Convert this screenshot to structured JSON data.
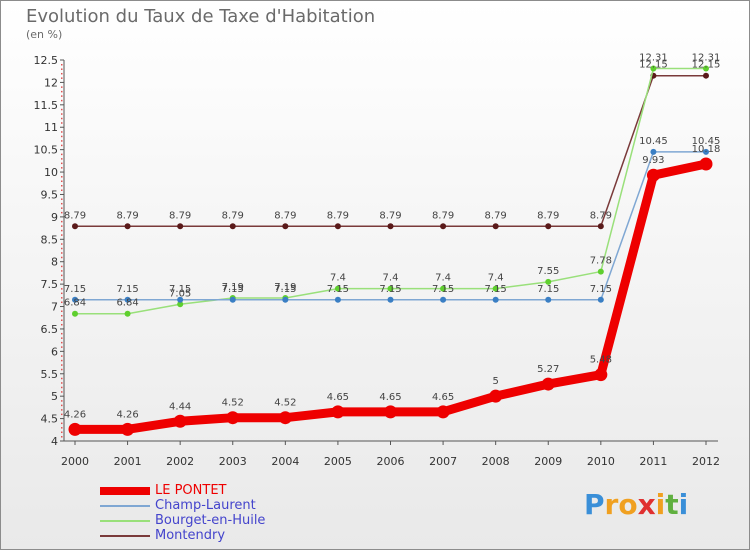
{
  "title": "Evolution du Taux de Taxe d'Habitation",
  "unit": "(en %)",
  "logo": "Proxiti",
  "chart_data": {
    "type": "line",
    "title": "Evolution du Taux de Taxe d'Habitation",
    "ylabel": "(en %)",
    "xlabel": "",
    "categories": [
      "2000",
      "2001",
      "2002",
      "2003",
      "2004",
      "2005",
      "2006",
      "2007",
      "2008",
      "2009",
      "2010",
      "2011",
      "2012"
    ],
    "ylim": [
      4,
      12.5
    ],
    "yticks": [
      4,
      4.5,
      5,
      5.5,
      6,
      6.5,
      7,
      7.5,
      8,
      8.5,
      9,
      9.5,
      10,
      10.5,
      11,
      11.5,
      12,
      12.5
    ],
    "ytick_labels": [
      "4",
      "4.5",
      "5",
      "5.5",
      "6",
      "6.5",
      "7",
      "7.5",
      "8",
      "8.5",
      "9",
      "9.5",
      "10",
      "10.5",
      "11",
      "11.5",
      "12",
      "12.5"
    ],
    "grid": false,
    "legend_position": "bottom-left",
    "series": [
      {
        "name": "LE PONTET",
        "color": "#ee0000",
        "values": [
          4.26,
          4.26,
          4.44,
          4.52,
          4.52,
          4.65,
          4.65,
          4.65,
          5,
          5.27,
          5.48,
          9.93,
          10.18
        ],
        "labels": [
          "4.26",
          "4.26",
          "4.44",
          "4.52",
          "4.52",
          "4.65",
          "4.65",
          "4.65",
          "5",
          "5.27",
          "5.48",
          "9.93",
          "10.18"
        ]
      },
      {
        "name": "Champ-Laurent",
        "color": "#7fa7d3",
        "values": [
          7.15,
          7.15,
          7.15,
          7.15,
          7.15,
          7.15,
          7.15,
          7.15,
          7.15,
          7.15,
          7.15,
          10.45,
          10.45
        ],
        "labels": [
          "7.15",
          "7.15",
          "7.15",
          "7.15",
          "7.15",
          "7.15",
          "7.15",
          "7.15",
          "7.15",
          "7.15",
          "7.15",
          "10.45",
          "10.45"
        ]
      },
      {
        "name": "Bourget-en-Huile",
        "color": "#99e07a",
        "values": [
          6.84,
          6.84,
          7.05,
          7.19,
          7.19,
          7.4,
          7.4,
          7.4,
          7.4,
          7.55,
          7.78,
          12.31,
          12.31
        ],
        "labels": [
          "6.84",
          "6.84",
          "7.05",
          "7.19",
          "7.19",
          "7.4",
          "7.4",
          "7.4",
          "7.4",
          "7.55",
          "7.78",
          "12.31",
          "12.31"
        ]
      },
      {
        "name": "Montendry",
        "color": "#7a3a3a",
        "values": [
          8.79,
          8.79,
          8.79,
          8.79,
          8.79,
          8.79,
          8.79,
          8.79,
          8.79,
          8.79,
          8.79,
          12.15,
          12.15
        ],
        "labels": [
          "8.79",
          "8.79",
          "8.79",
          "8.79",
          "8.79",
          "8.79",
          "8.79",
          "8.79",
          "8.79",
          "8.79",
          "8.79",
          "12.15",
          "12.15"
        ]
      }
    ]
  },
  "colors": {
    "marker_champ": "#3a7fc4",
    "marker_bourget": "#5fcf2e",
    "marker_montendry": "#5a1a1a",
    "logo_letters": [
      "#3a8fd8",
      "#f0a020",
      "#f0a020",
      "#e03030",
      "#f0a020",
      "#60b040",
      "#3a8fd8"
    ]
  }
}
